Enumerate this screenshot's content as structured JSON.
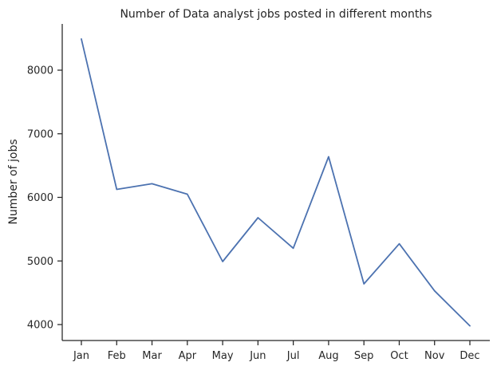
{
  "chart_data": {
    "type": "line",
    "title": "Number of Data analyst jobs posted in different months",
    "xlabel": "",
    "ylabel": "Number of jobs",
    "categories": [
      "Jan",
      "Feb",
      "Mar",
      "Apr",
      "May",
      "Jun",
      "Jul",
      "Aug",
      "Sep",
      "Oct",
      "Nov",
      "Dec"
    ],
    "series": [
      {
        "values": [
          8490,
          6125,
          6215,
          6050,
          4990,
          5680,
          5200,
          6640,
          4640,
          5270,
          4530,
          3980
        ],
        "color": "#4c72b0"
      }
    ],
    "yticks": [
      4000,
      5000,
      6000,
      7000,
      8000
    ],
    "ylim": [
      3750,
      8750
    ],
    "grid": false,
    "legend": "none"
  }
}
